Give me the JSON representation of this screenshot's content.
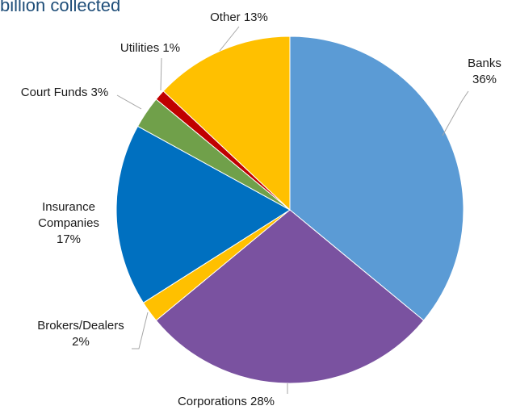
{
  "title": "billion collected",
  "chart_data": {
    "type": "pie",
    "slices": [
      {
        "name": "Banks",
        "value": 36,
        "color": "#5b9bd5",
        "label_lines": [
          "Banks",
          "36%"
        ]
      },
      {
        "name": "Corporations",
        "value": 28,
        "color": "#7a52a0",
        "label_lines": [
          "Corporations 28%"
        ]
      },
      {
        "name": "Brokers/Dealers",
        "value": 2,
        "color": "#ffc000",
        "label_lines": [
          "Brokers/Dealers",
          "2%"
        ]
      },
      {
        "name": "Insurance Companies",
        "value": 17,
        "color": "#0070c0",
        "label_lines": [
          "Insurance",
          "Companies",
          "17%"
        ]
      },
      {
        "name": "Court Funds",
        "value": 3,
        "color": "#70a04a",
        "label_lines": [
          "Court Funds 3%"
        ]
      },
      {
        "name": "Utilities",
        "value": 1,
        "color": "#c00000",
        "label_lines": [
          "Utilities 1%"
        ]
      },
      {
        "name": "Other",
        "value": 13,
        "color": "#ffc000",
        "label_lines": [
          "Other 13%"
        ]
      }
    ]
  }
}
